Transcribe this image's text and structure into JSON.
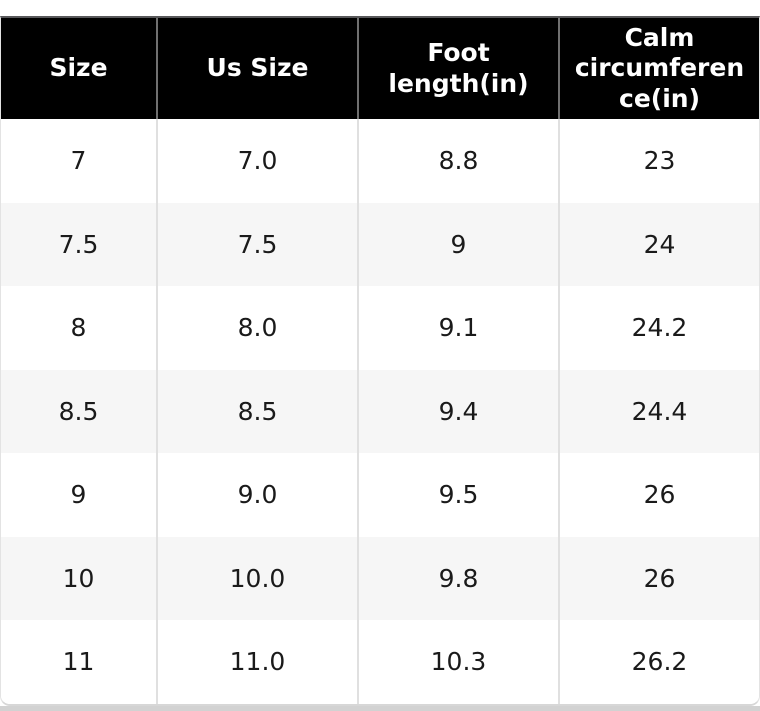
{
  "chart_data": {
    "type": "table",
    "title": "",
    "columns": [
      "Size",
      "Us Size",
      "Foot length(in)",
      "Calm circumference(in)"
    ],
    "rows": [
      [
        "7",
        "7.0",
        "8.8",
        "23"
      ],
      [
        "7.5",
        "7.5",
        "9",
        "24"
      ],
      [
        "8",
        "8.0",
        "9.1",
        "24.2"
      ],
      [
        "8.5",
        "8.5",
        "9.4",
        "24.4"
      ],
      [
        "9",
        "9.0",
        "9.5",
        "26"
      ],
      [
        "10",
        "10.0",
        "9.8",
        "26"
      ],
      [
        "11",
        "11.0",
        "10.3",
        "26.2"
      ]
    ],
    "layout": {
      "header_position": "top",
      "zebra_striping": true,
      "grid": "vertical-only"
    },
    "colors": {
      "header_bg": "#000000",
      "header_text": "#ffffff",
      "header_grid_line": "#707070",
      "header_top_border": "#58585a",
      "body_text": "#1a1a1a",
      "row_bg": "#ffffff",
      "row_alt_bg": "#f6f6f6",
      "body_grid_line": "#e0e0e0",
      "card_bottom_border": "#d7d7d7",
      "bottom_strip_bg": "#d2d2d2"
    }
  }
}
